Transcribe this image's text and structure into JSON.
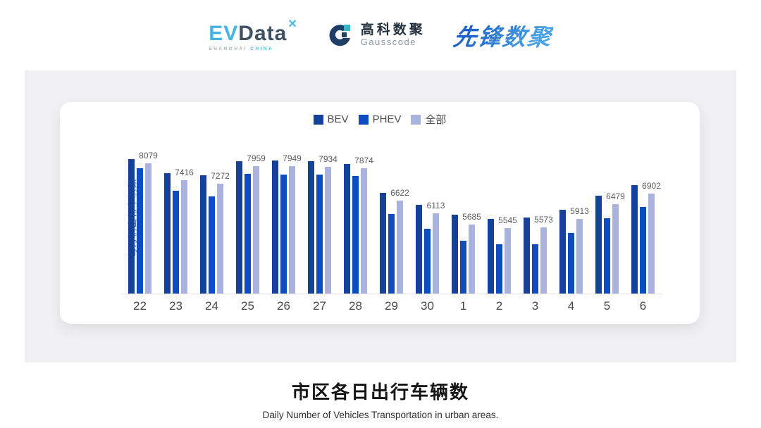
{
  "header": {
    "evdata": {
      "ev": "EV",
      "data": "Data",
      "mark": "✕",
      "sub_left": "SHANGHAI",
      "sub_right": "CHINA"
    },
    "gausscode": {
      "cn": "高科数聚",
      "en": "Gausscode"
    },
    "pioneer": {
      "text": "先锋数聚"
    }
  },
  "chart_data": {
    "type": "bar",
    "title": "市区各日出行车辆数",
    "subtitle": "Daily Number of Vehicles Transportation in urban areas.",
    "ylabel": "每万辆出行车辆数",
    "xlabel": "",
    "categories": [
      "22",
      "23",
      "24",
      "25",
      "26",
      "27",
      "28",
      "29",
      "30",
      "1",
      "2",
      "3",
      "4",
      "5",
      "6"
    ],
    "series": [
      {
        "name": "BEV",
        "color": "#16419a",
        "values": [
          8230,
          7690,
          7600,
          8150,
          8170,
          8150,
          8030,
          6920,
          6460,
          6070,
          5910,
          5950,
          6250,
          6800,
          7230
        ],
        "labels_shown": false
      },
      {
        "name": "PHEV",
        "color": "#0d4cc3",
        "values": [
          7880,
          6990,
          6780,
          7650,
          7640,
          7620,
          7580,
          6100,
          5520,
          5050,
          4930,
          4930,
          5350,
          5930,
          6380
        ],
        "labels_shown": false
      },
      {
        "name": "全部",
        "color": "#a9b3de",
        "values": [
          8079,
          7416,
          7272,
          7959,
          7949,
          7934,
          7874,
          6622,
          6113,
          5685,
          5545,
          5573,
          5913,
          6479,
          6902
        ],
        "labels_shown": true
      }
    ],
    "ylim": [
      3000,
      9100
    ],
    "grid": false,
    "legend_position": "top",
    "axis_line_color": "#e3e3e6"
  }
}
